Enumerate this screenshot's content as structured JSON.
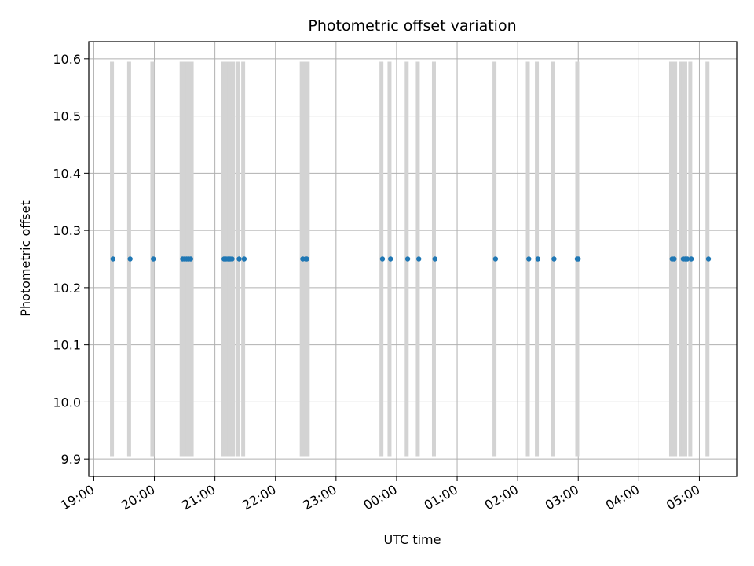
{
  "chart_data": {
    "type": "scatter",
    "title": "Photometric offset variation",
    "xlabel": "UTC time",
    "ylabel": "Photometric offset",
    "grid": true,
    "x_ticks": [
      "19:00",
      "20:00",
      "21:00",
      "22:00",
      "23:00",
      "00:00",
      "01:00",
      "02:00",
      "03:00",
      "04:00",
      "05:00"
    ],
    "y_ticks": [
      "9.9",
      "10.0",
      "10.1",
      "10.2",
      "10.3",
      "10.4",
      "10.5",
      "10.6"
    ],
    "xlim": [
      "18:55",
      "05:37"
    ],
    "ylim": [
      9.87,
      10.63
    ],
    "colors": {
      "points": "#1f77b4",
      "bands": "#d3d3d3",
      "grid": "#b0b0b0"
    },
    "bands": {
      "y_range": [
        9.905,
        10.595
      ],
      "x": [
        "19:18",
        "19:35",
        "19:58",
        "20:27",
        "20:29",
        "20:31",
        "20:33",
        "20:35",
        "20:37",
        "21:08",
        "21:10",
        "21:12",
        "21:14",
        "21:16",
        "21:18",
        "21:23",
        "21:28",
        "22:26",
        "22:28",
        "22:30",
        "22:32",
        "23:45",
        "23:53",
        "00:10",
        "00:21",
        "00:37",
        "01:37",
        "02:10",
        "02:19",
        "02:35",
        "02:59",
        "04:32",
        "04:34",
        "04:36",
        "04:42",
        "04:44",
        "04:46",
        "04:51",
        "05:08"
      ]
    },
    "series": [
      {
        "x": [
          "19:19",
          "19:36",
          "19:59",
          "20:28",
          "20:30",
          "20:32",
          "20:34",
          "20:36",
          "21:09",
          "21:11",
          "21:13",
          "21:15",
          "21:17",
          "21:24",
          "21:29",
          "22:27",
          "22:30",
          "22:31",
          "23:46",
          "23:54",
          "00:11",
          "00:22",
          "00:38",
          "01:38",
          "02:11",
          "02:20",
          "02:36",
          "02:59",
          "03:00",
          "04:33",
          "04:35",
          "04:44",
          "04:46",
          "04:48",
          "04:52",
          "05:09"
        ],
        "y": [
          10.25,
          10.25,
          10.25,
          10.25,
          10.25,
          10.25,
          10.25,
          10.25,
          10.25,
          10.25,
          10.25,
          10.25,
          10.25,
          10.25,
          10.25,
          10.25,
          10.25,
          10.25,
          10.25,
          10.25,
          10.25,
          10.25,
          10.25,
          10.25,
          10.25,
          10.25,
          10.25,
          10.25,
          10.25,
          10.25,
          10.25,
          10.25,
          10.25,
          10.25,
          10.25,
          10.25
        ]
      }
    ]
  }
}
